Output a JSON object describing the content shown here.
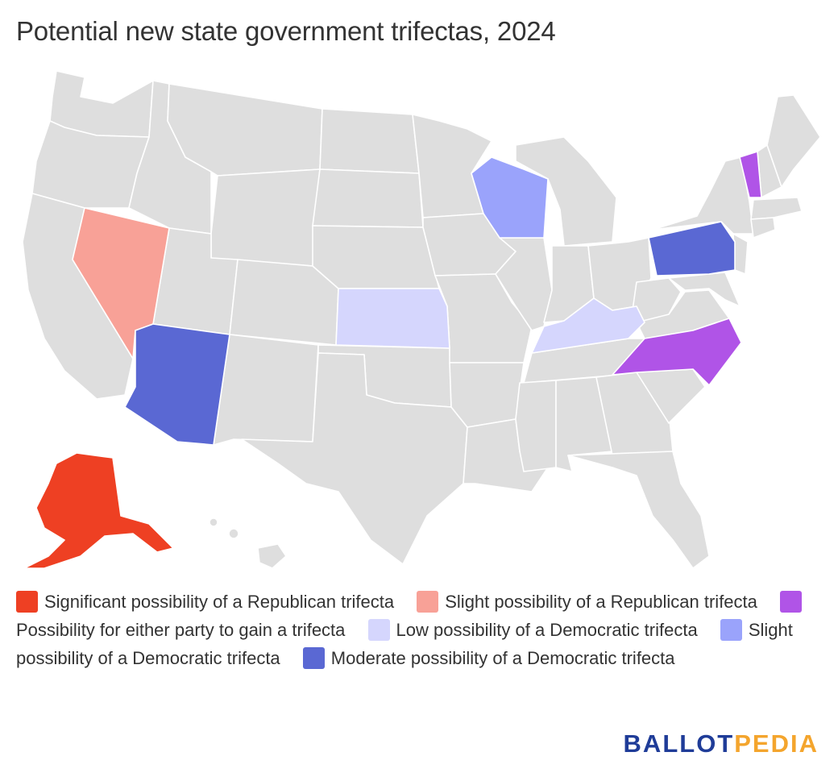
{
  "title": "Potential new state government trifectas, 2024",
  "colors": {
    "significant_rep": "#ee4023",
    "slight_rep": "#f8a197",
    "either_party": "#b054e7",
    "low_dem": "#d5d6fd",
    "slight_dem": "#9aa3fb",
    "moderate_dem": "#5a68d3",
    "no_change": "#dedede"
  },
  "legend": [
    {
      "label": "Significant possibility of a Republican trifecta",
      "color": "#ee4023"
    },
    {
      "label": "Slight possibility of a Republican trifecta",
      "color": "#f8a197"
    },
    {
      "label": "Possibility for either party to gain a trifecta",
      "color": "#b054e7"
    },
    {
      "label": "Low possibility of a Democratic trifecta",
      "color": "#d5d6fd"
    },
    {
      "label": "Slight possibility of a Democratic trifecta",
      "color": "#9aa3fb"
    },
    {
      "label": "Moderate possibility of a Democratic trifecta",
      "color": "#5a68d3"
    }
  ],
  "highlighted_states": [
    {
      "state": "Alaska",
      "category": "Significant possibility of a Republican trifecta"
    },
    {
      "state": "Nevada",
      "category": "Slight possibility of a Republican trifecta"
    },
    {
      "state": "North Carolina",
      "category": "Possibility for either party to gain a trifecta"
    },
    {
      "state": "Vermont",
      "category": "Possibility for either party to gain a trifecta"
    },
    {
      "state": "Kansas",
      "category": "Low possibility of a Democratic trifecta"
    },
    {
      "state": "Kentucky",
      "category": "Low possibility of a Democratic trifecta"
    },
    {
      "state": "Wisconsin",
      "category": "Slight possibility of a Democratic trifecta"
    },
    {
      "state": "Arizona",
      "category": "Moderate possibility of a Democratic trifecta"
    },
    {
      "state": "Pennsylvania",
      "category": "Moderate possibility of a Democratic trifecta"
    }
  ],
  "brand": {
    "part1": "BALLOT",
    "part2": "PEDIA"
  }
}
